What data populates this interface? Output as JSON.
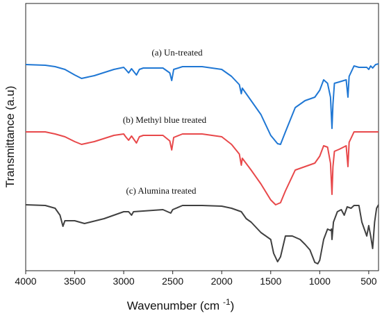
{
  "chart_data": {
    "type": "line",
    "x_label": {
      "text": "Wavenumber (cm",
      "superscript": "-1",
      "suffix": ")"
    },
    "y_label": "Transmittance (a.u)",
    "xlim": [
      4000,
      400
    ],
    "xticks": [
      4000,
      3500,
      3000,
      2500,
      2000,
      1500,
      1000,
      500
    ],
    "ylim": [
      0,
      385
    ],
    "series": [
      {
        "name": "(a) Un-treated",
        "color": "#1f77d4",
        "x": [
          4000,
          3800,
          3700,
          3600,
          3500,
          3430,
          3300,
          3100,
          3000,
          2980,
          2950,
          2920,
          2870,
          2840,
          2800,
          2600,
          2530,
          2510,
          2490,
          2400,
          2200,
          2000,
          1900,
          1820,
          1800,
          1790,
          1700,
          1600,
          1500,
          1430,
          1400,
          1350,
          1250,
          1150,
          1050,
          1000,
          960,
          920,
          890,
          875,
          865,
          850,
          800,
          730,
          712,
          700,
          650,
          600,
          520,
          500,
          480,
          460,
          430,
          400
        ],
        "values": [
          297,
          296,
          294,
          290,
          282,
          277,
          281,
          290,
          293,
          290,
          285,
          291,
          282,
          290,
          292,
          292,
          285,
          274,
          290,
          294,
          294,
          290,
          280,
          268,
          255,
          263,
          245,
          225,
          195,
          183,
          182,
          200,
          235,
          245,
          250,
          260,
          275,
          270,
          250,
          205,
          240,
          270,
          272,
          275,
          250,
          280,
          295,
          293,
          293,
          290,
          295,
          292,
          297,
          298
        ]
      },
      {
        "name": "(b) Methyl blue treated",
        "color": "#e8484a",
        "x": [
          4000,
          3800,
          3700,
          3600,
          3500,
          3430,
          3300,
          3100,
          3000,
          2980,
          2950,
          2920,
          2870,
          2840,
          2800,
          2600,
          2530,
          2510,
          2490,
          2400,
          2200,
          2000,
          1900,
          1820,
          1800,
          1790,
          1700,
          1600,
          1500,
          1450,
          1400,
          1350,
          1250,
          1150,
          1050,
          1000,
          960,
          920,
          890,
          875,
          865,
          850,
          800,
          730,
          712,
          700,
          650,
          600,
          500,
          400
        ],
        "values": [
          200,
          200,
          197,
          193,
          186,
          182,
          186,
          195,
          197,
          193,
          188,
          194,
          184,
          193,
          195,
          195,
          187,
          174,
          192,
          197,
          197,
          193,
          182,
          168,
          152,
          162,
          145,
          125,
          102,
          95,
          98,
          115,
          145,
          150,
          155,
          165,
          180,
          178,
          155,
          110,
          150,
          172,
          175,
          180,
          150,
          185,
          200,
          200,
          200,
          200
        ]
      },
      {
        "name": "(c) Alumina treated",
        "color": "#404040",
        "x": [
          4000,
          3800,
          3700,
          3650,
          3620,
          3600,
          3500,
          3400,
          3200,
          3000,
          2950,
          2920,
          2900,
          2600,
          2520,
          2500,
          2400,
          2200,
          2000,
          1900,
          1800,
          1750,
          1700,
          1600,
          1500,
          1470,
          1430,
          1400,
          1350,
          1280,
          1200,
          1150,
          1100,
          1050,
          1020,
          1000,
          960,
          920,
          890,
          880,
          875,
          860,
          820,
          780,
          750,
          720,
          680,
          650,
          600,
          570,
          520,
          500,
          480,
          460,
          440,
          420,
          400
        ],
        "values": [
          95,
          94,
          90,
          80,
          64,
          72,
          72,
          68,
          75,
          85,
          85,
          80,
          85,
          88,
          83,
          88,
          94,
          94,
          93,
          90,
          85,
          75,
          70,
          55,
          45,
          25,
          13,
          20,
          50,
          50,
          45,
          38,
          30,
          12,
          10,
          15,
          45,
          60,
          58,
          60,
          45,
          70,
          85,
          88,
          80,
          92,
          90,
          94,
          94,
          70,
          50,
          65,
          50,
          32,
          70,
          90,
          95
        ]
      }
    ]
  }
}
